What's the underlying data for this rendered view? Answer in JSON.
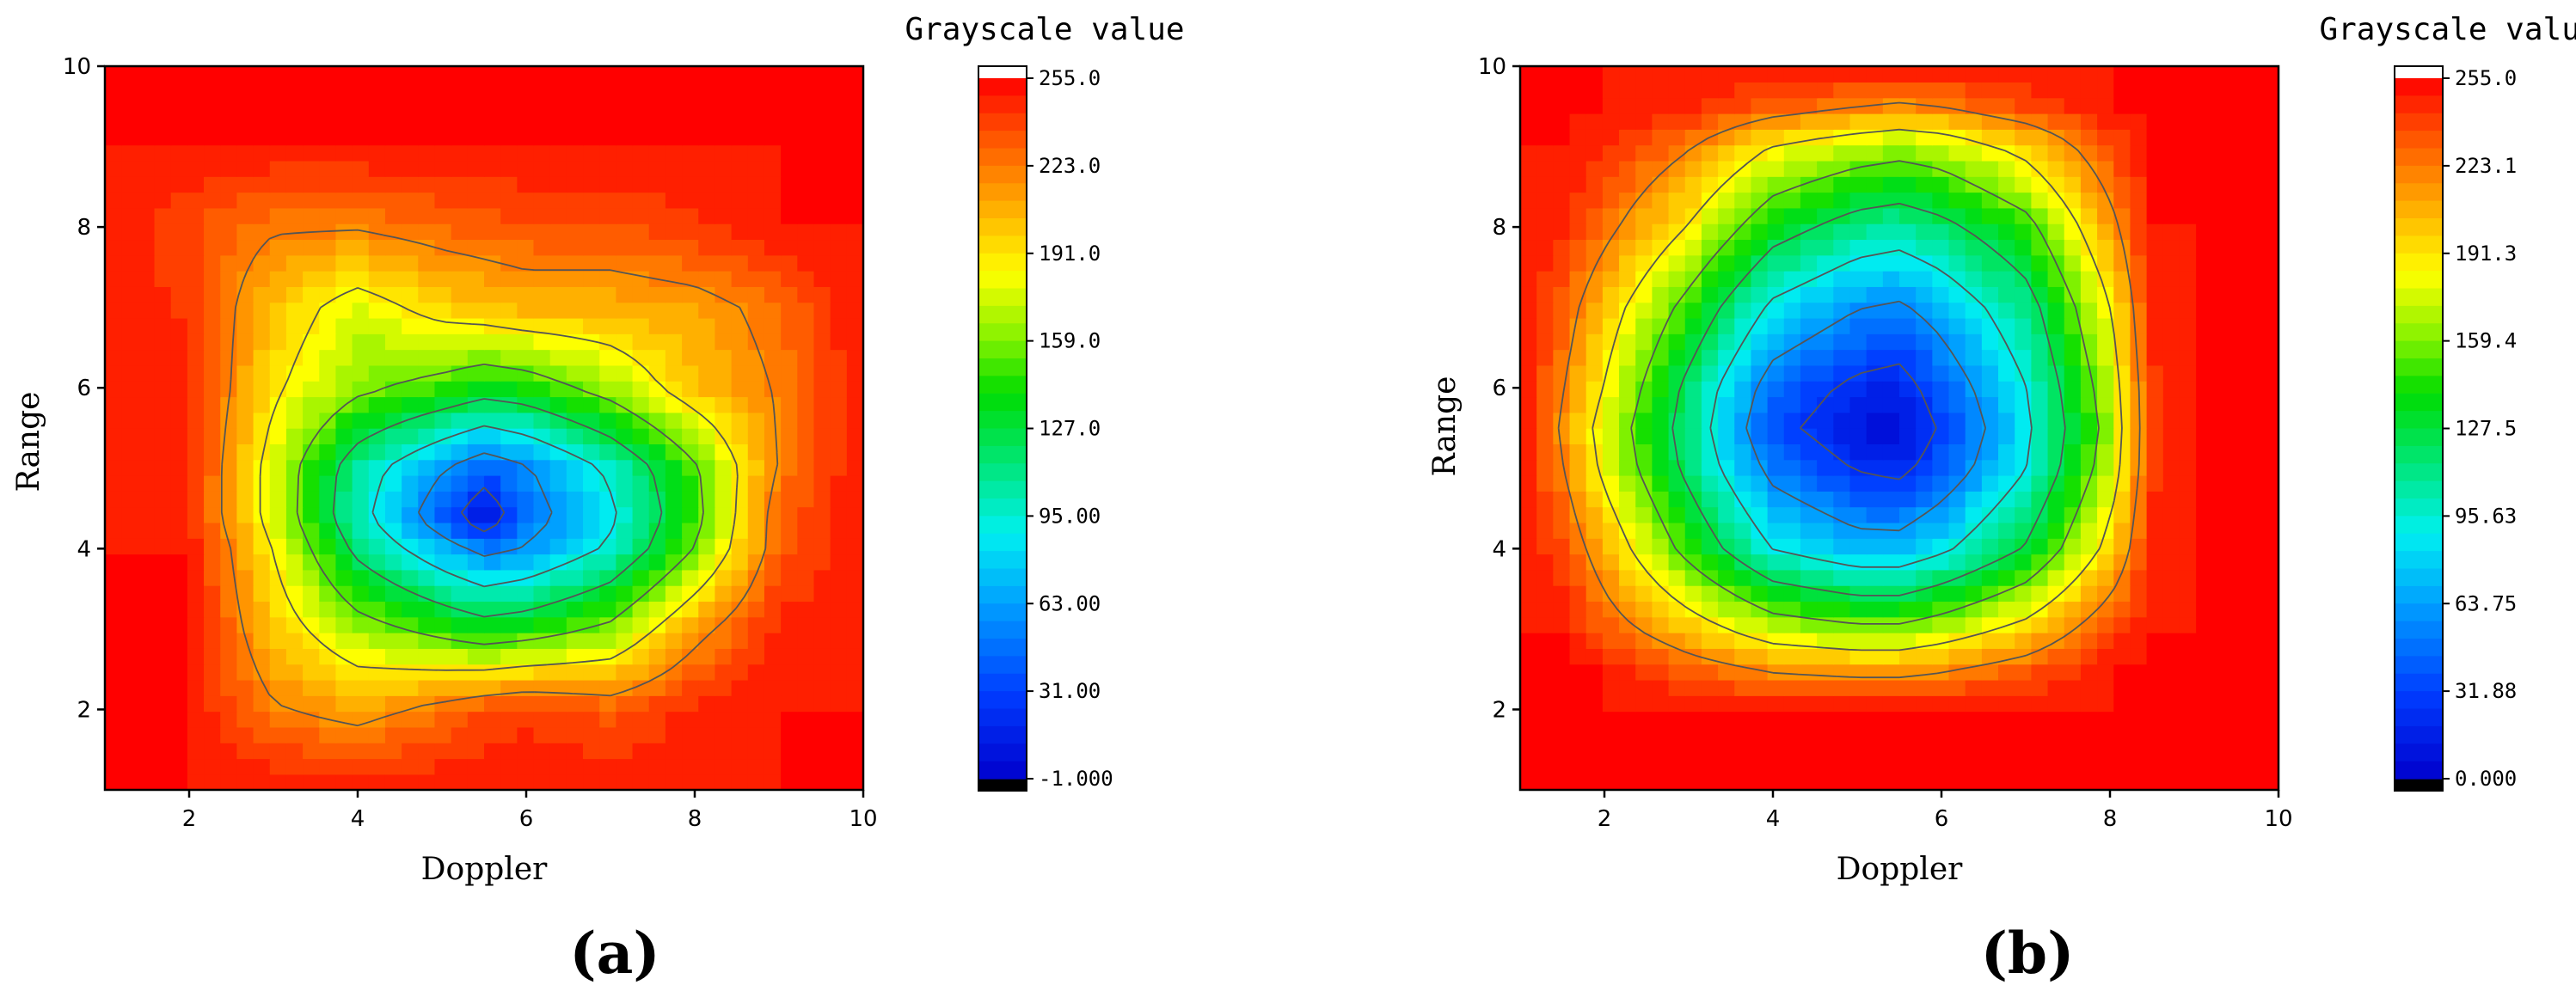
{
  "chart_data": [
    {
      "type": "heatmap",
      "panel_label": "(a)",
      "xlabel": "Doppler",
      "ylabel": "Range",
      "xlim": [
        1,
        10
      ],
      "ylim": [
        1,
        10
      ],
      "x_ticks": [
        2,
        4,
        6,
        8,
        10
      ],
      "y_ticks": [
        2,
        4,
        6,
        8,
        10
      ],
      "colorbar": {
        "title": "Grayscale value",
        "min": -1.0,
        "max": 255.0,
        "tick_labels": [
          "255.0",
          "223.0",
          "191.0",
          "159.0",
          "127.0",
          "95.00",
          "63.00",
          "31.00",
          "-1.000"
        ]
      },
      "z_x": [
        1,
        2,
        3,
        4,
        5,
        5.5,
        6,
        7,
        8,
        9,
        10
      ],
      "z_y": [
        1,
        2,
        3,
        4,
        4.4,
        5,
        6,
        7,
        8,
        9,
        10
      ],
      "z": [
        [
          255,
          255,
          255,
          255,
          255,
          255,
          255,
          255,
          255,
          255,
          255
        ],
        [
          255,
          255,
          225,
          215,
          230,
          240,
          245,
          235,
          250,
          255,
          255
        ],
        [
          255,
          255,
          205,
          170,
          150,
          140,
          145,
          165,
          215,
          250,
          255
        ],
        [
          255,
          255,
          190,
          120,
          75,
          55,
          65,
          100,
          160,
          235,
          255
        ],
        [
          255,
          250,
          180,
          105,
          45,
          10,
          50,
          90,
          150,
          235,
          255
        ],
        [
          255,
          250,
          180,
          110,
          65,
          45,
          60,
          100,
          155,
          225,
          255
        ],
        [
          255,
          250,
          195,
          165,
          150,
          140,
          145,
          170,
          205,
          225,
          255
        ],
        [
          255,
          245,
          205,
          180,
          200,
          205,
          210,
          210,
          215,
          230,
          255
        ],
        [
          255,
          240,
          225,
          225,
          232,
          235,
          238,
          238,
          245,
          255,
          255
        ],
        [
          255,
          255,
          255,
          255,
          255,
          255,
          255,
          255,
          255,
          255,
          255
        ],
        [
          255,
          255,
          255,
          255,
          255,
          255,
          255,
          255,
          255,
          255,
          255
        ]
      ]
    },
    {
      "type": "heatmap",
      "panel_label": "(b)",
      "xlabel": "Doppler",
      "ylabel": "Range",
      "xlim": [
        1,
        10
      ],
      "ylim": [
        1,
        10
      ],
      "x_ticks": [
        2,
        4,
        6,
        8,
        10
      ],
      "y_ticks": [
        2,
        4,
        6,
        8,
        10
      ],
      "colorbar": {
        "title": "Grayscale value",
        "min": 0.0,
        "max": 255.0,
        "tick_labels": [
          "255.0",
          "223.1",
          "191.3",
          "159.4",
          "127.5",
          "95.63",
          "63.75",
          "31.88",
          "0.000"
        ]
      },
      "z_x": [
        1,
        1.5,
        2,
        3,
        4,
        5,
        5.5,
        6,
        7,
        8,
        8.5,
        9,
        10
      ],
      "z_y": [
        1,
        2,
        2.5,
        3,
        4,
        5,
        5.5,
        6,
        7,
        8,
        9,
        9.5,
        10
      ],
      "z": [
        [
          255,
          255,
          255,
          255,
          255,
          255,
          255,
          255,
          255,
          255,
          255,
          255,
          255
        ],
        [
          255,
          255,
          255,
          255,
          255,
          255,
          255,
          255,
          255,
          255,
          255,
          255,
          255
        ],
        [
          255,
          255,
          255,
          235,
          220,
          215,
          215,
          220,
          235,
          255,
          255,
          255,
          255
        ],
        [
          255,
          255,
          235,
          205,
          175,
          165,
          165,
          175,
          200,
          240,
          255,
          255,
          255
        ],
        [
          255,
          240,
          210,
          150,
          95,
          75,
          75,
          90,
          130,
          200,
          250,
          255,
          255
        ],
        [
          255,
          225,
          185,
          120,
          55,
          30,
          25,
          45,
          95,
          175,
          245,
          255,
          255
        ],
        [
          255,
          220,
          180,
          115,
          40,
          15,
          10,
          35,
          90,
          170,
          245,
          255,
          255
        ],
        [
          255,
          225,
          190,
          120,
          50,
          25,
          20,
          45,
          95,
          175,
          245,
          255,
          255
        ],
        [
          255,
          235,
          205,
          150,
          90,
          65,
          60,
          75,
          115,
          190,
          250,
          255,
          255
        ],
        [
          255,
          250,
          230,
          190,
          140,
          115,
          110,
          120,
          150,
          215,
          255,
          255,
          255
        ],
        [
          255,
          255,
          250,
          225,
          190,
          175,
          170,
          175,
          200,
          240,
          255,
          255,
          255
        ],
        [
          255,
          255,
          255,
          250,
          235,
          225,
          220,
          225,
          240,
          255,
          255,
          255,
          255
        ],
        [
          255,
          255,
          255,
          255,
          255,
          255,
          255,
          255,
          255,
          255,
          255,
          255,
          255
        ]
      ]
    }
  ]
}
